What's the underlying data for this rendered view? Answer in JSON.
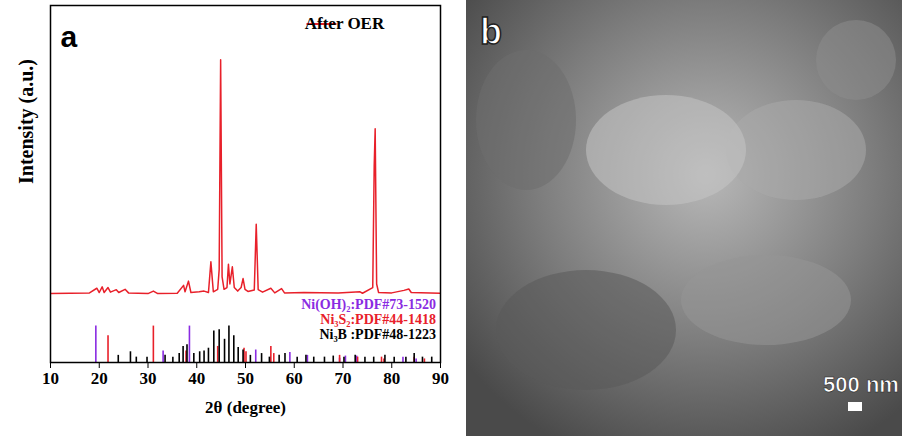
{
  "chart_data": {
    "type": "line",
    "panel_label": "a",
    "x_label": "2θ (degree)",
    "y_label": "Intensity (a.u.)",
    "xlim": [
      10,
      90
    ],
    "xticks": [
      10,
      20,
      30,
      40,
      50,
      60,
      70,
      80,
      90
    ],
    "ylim": [
      0,
      100
    ],
    "yticks": [],
    "tick_labels": "x",
    "grid": false,
    "legend": "top-right",
    "series": [
      {
        "name": "After OER",
        "color": "#e8202a",
        "type": "line",
        "x": [
          10,
          18,
          19.5,
          20,
          20.6,
          21,
          21.8,
          22.3,
          23.5,
          24,
          25.3,
          26,
          30,
          31.1,
          32,
          36,
          37.3,
          37.6,
          38.3,
          38.8,
          40.5,
          41.5,
          42.4,
          42.9,
          43.4,
          44.3,
          44.6,
          44.9,
          45.2,
          45.6,
          46.2,
          46.5,
          46.8,
          47.3,
          47.7,
          48.4,
          49.1,
          49.5,
          49.9,
          50.5,
          51.8,
          52.2,
          52.6,
          53.5,
          55.2,
          56,
          57.4,
          58,
          62,
          69,
          73.5,
          74,
          76.1,
          76.4,
          76.6,
          76.9,
          77.3,
          80,
          82.5,
          83.5,
          84,
          90
        ],
        "values": [
          19.3,
          19.5,
          20.8,
          19.6,
          21.2,
          19.6,
          21.0,
          19.7,
          20.4,
          19.6,
          20.5,
          19.5,
          19.3,
          20.0,
          19.3,
          19.4,
          21.6,
          19.8,
          22.8,
          19.6,
          19.8,
          20.0,
          19.6,
          28.2,
          19.8,
          20.5,
          26,
          84.8,
          24,
          20.5,
          21,
          27.5,
          22,
          26.8,
          21,
          20,
          21,
          23.5,
          20.5,
          19.9,
          20.3,
          38.7,
          20.4,
          19.7,
          20.8,
          19.5,
          20.7,
          19.5,
          19.6,
          19.5,
          19.8,
          19.4,
          21,
          55,
          65.5,
          22,
          19.6,
          19.5,
          20.2,
          20.6,
          19.6,
          19.4
        ]
      },
      {
        "name": "Ni(OH)₂:PDF#73-1520",
        "color": "#8a2be2",
        "type": "stick",
        "x": [
          19.3,
          33.1,
          38.5,
          52.1,
          59.1,
          62.7,
          69.3,
          70.5,
          72.8,
          82.3,
          85
        ],
        "values": [
          10.2,
          3.2,
          10.2,
          3.5,
          2.8,
          2.0,
          1.2,
          1.8,
          1.8,
          1.5,
          1.0
        ]
      },
      {
        "name": "Ni₃S₂:PDF#44-1418",
        "color": "#e8202a",
        "type": "stick",
        "x": [
          21.8,
          31.1,
          37.8,
          44.3,
          49.7,
          50.1,
          55.2,
          55.8,
          69.3,
          73.0,
          77.9,
          78.4,
          84.6,
          86.7
        ],
        "values": [
          7.5,
          10.2,
          3.2,
          4.5,
          4.0,
          3.0,
          4.5,
          2.5,
          2.0,
          1.5,
          1.5,
          1.0,
          1.5,
          1.0
        ]
      },
      {
        "name": "Ni₃B :PDF#48-1223",
        "color": "#000000",
        "type": "stick",
        "x": [
          23.9,
          26.4,
          27.6,
          29.8,
          33.5,
          35.1,
          36.4,
          37.2,
          38.0,
          39.4,
          40.6,
          41.5,
          42.4,
          43.5,
          44.6,
          45.7,
          46.6,
          47.6,
          48.5,
          49.5,
          51.0,
          53.3,
          54.9,
          56.9,
          58.1,
          60.6,
          62.4,
          64.0,
          66.2,
          68.0,
          70.2,
          72.5,
          74.5,
          76.3,
          78.6,
          80.5,
          82.9,
          84.6,
          86.3,
          88.2
        ],
        "values": [
          2,
          3,
          1.5,
          1.5,
          2,
          1.5,
          2.5,
          4.5,
          5.0,
          2.5,
          3.0,
          3.2,
          4.0,
          8.8,
          9.2,
          6.5,
          10.2,
          7.5,
          4.2,
          3.5,
          2.0,
          2.5,
          1.5,
          2.0,
          2.5,
          1.5,
          2.0,
          1.5,
          1.5,
          1.8,
          1.5,
          2.0,
          1.5,
          1.5,
          2.0,
          1.5,
          1.5,
          2.5,
          1.5,
          1.5
        ]
      }
    ]
  },
  "image_panel": {
    "panel_label": "b",
    "scale_bar": "500 nm"
  }
}
